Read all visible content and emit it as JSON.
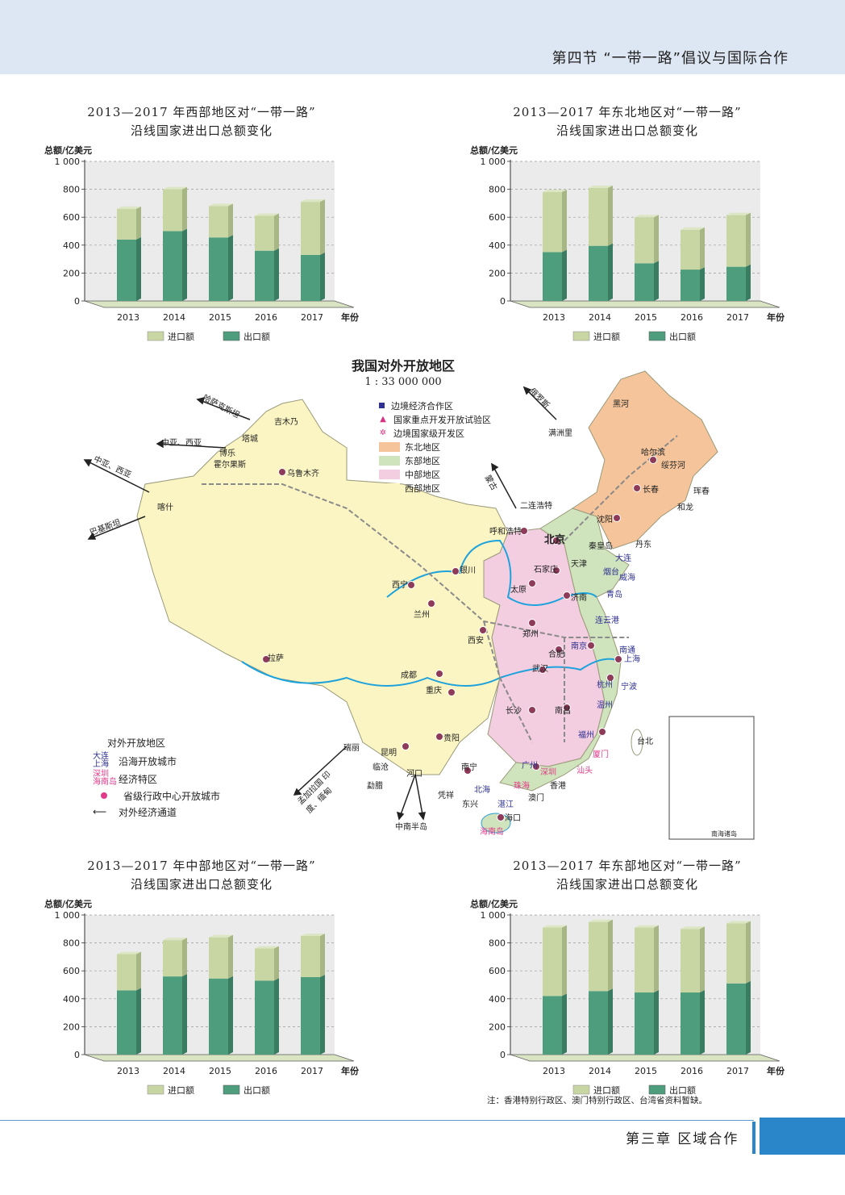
{
  "header": {
    "title": "第四节 “一带一路”倡议与国际合作"
  },
  "footer": {
    "chapter": "第三章 区域合作"
  },
  "charts": [
    {
      "title": "2013—2017 年西部地区对“一带一路”\n沿线国家进出口总额变化",
      "ylabel": "总额/亿美元",
      "xlabel": "年份",
      "legend": [
        "进口额",
        "出口额"
      ],
      "ticks": [
        "0",
        "200",
        "400",
        "600",
        "800",
        "1 000"
      ],
      "years": [
        "2013",
        "2014",
        "2015",
        "2016",
        "2017"
      ],
      "total": [
        660,
        800,
        680,
        610,
        710
      ],
      "export": [
        440,
        500,
        455,
        360,
        330
      ]
    },
    {
      "title": "2013—2017 年东北地区对“一带一路”\n沿线国家进出口总额变化",
      "ylabel": "总额/亿美元",
      "xlabel": "年份",
      "legend": [
        "进口额",
        "出口额"
      ],
      "ticks": [
        "0",
        "200",
        "400",
        "600",
        "800",
        "1 000"
      ],
      "years": [
        "2013",
        "2014",
        "2015",
        "2016",
        "2017"
      ],
      "total": [
        780,
        810,
        600,
        510,
        615
      ],
      "export": [
        350,
        395,
        270,
        225,
        245
      ]
    },
    {
      "title": "2013—2017 年中部地区对“一带一路”\n沿线国家进出口总额变化",
      "ylabel": "总额/亿美元",
      "xlabel": "年份",
      "legend": [
        "进口额",
        "出口额"
      ],
      "ticks": [
        "0",
        "200",
        "400",
        "600",
        "800",
        "1 000"
      ],
      "years": [
        "2013",
        "2014",
        "2015",
        "2016",
        "2017"
      ],
      "total": [
        720,
        820,
        840,
        760,
        850
      ],
      "export": [
        460,
        560,
        545,
        530,
        555
      ]
    },
    {
      "title": "2013—2017 年东部地区对“一带一路”\n沿线国家进出口总额变化",
      "ylabel": "总额/亿美元",
      "xlabel": "年份",
      "legend": [
        "进口额",
        "出口额"
      ],
      "ticks": [
        "0",
        "200",
        "400",
        "600",
        "800",
        "1 000"
      ],
      "years": [
        "2013",
        "2014",
        "2015",
        "2016",
        "2017"
      ],
      "total": [
        910,
        950,
        910,
        900,
        940
      ],
      "export": [
        420,
        455,
        445,
        445,
        510
      ]
    }
  ],
  "map": {
    "title": "我国对外开放地区",
    "scale": "1 : 33 000 000",
    "legend_symbols": [
      "边境经济合作区",
      "国家重点开发开放试验区",
      "边境国家级开发区"
    ],
    "legend_regions": [
      {
        "label": "东北地区",
        "color": "#f5c49a"
      },
      {
        "label": "东部地区",
        "color": "#cfe3bd"
      },
      {
        "label": "中部地区",
        "color": "#f3cde0"
      },
      {
        "label": "西部地区",
        "color": "#fbf5c3"
      }
    ],
    "legend2_title": "对外开放地区",
    "legend2": {
      "coastal_sample": "大连 上海",
      "coastal_label": "沿海开放城市",
      "sez_sample": "深圳 海南岛",
      "sez_label": "经济特区",
      "capital_label": "省级行政中心开放城市",
      "corridor_label": "对外经济通道"
    },
    "routes": [
      "哈萨克斯坦",
      "中亚、西亚",
      "中亚、西亚",
      "巴基斯坦",
      "俄罗斯",
      "蒙古",
      "孟加拉国 印度、缅甸",
      "中南半岛"
    ],
    "cities": [
      "乌鲁木齐",
      "喀什",
      "霍尔果斯",
      "吉木乃",
      "塔城",
      "博乐",
      "拉萨",
      "西宁",
      "兰州",
      "银川",
      "呼和浩特",
      "二连浩特",
      "满洲里",
      "黑河",
      "哈尔滨",
      "绥芬河",
      "珲春",
      "长春",
      "和龙",
      "沈阳",
      "丹东",
      "北京",
      "天津",
      "秦皇岛",
      "大连",
      "烟台",
      "威海",
      "青岛",
      "石家庄",
      "太原",
      "济南",
      "连云港",
      "郑州",
      "西安",
      "合肥",
      "南京",
      "南通",
      "上海",
      "武汉",
      "杭州",
      "宁波",
      "成都",
      "重庆",
      "长沙",
      "南昌",
      "温州",
      "福州",
      "台北",
      "贵阳",
      "昆明",
      "瑞丽",
      "临沧",
      "河口",
      "勐腊",
      "南宁",
      "凭祥",
      "东兴",
      "北海",
      "广州",
      "深圳",
      "汕头",
      "厦门",
      "珠海",
      "香港",
      "澳门",
      "湛江",
      "海口",
      "海南岛",
      "中南半岛",
      "南海诸岛"
    ]
  },
  "note": "注：香港特别行政区、澳门特别行政区、台湾省资料暂缺。",
  "colors": {
    "import": "#c8d6a4",
    "export": "#4e9e7e",
    "band": "#dde7f3",
    "accent": "#2a86c9"
  }
}
